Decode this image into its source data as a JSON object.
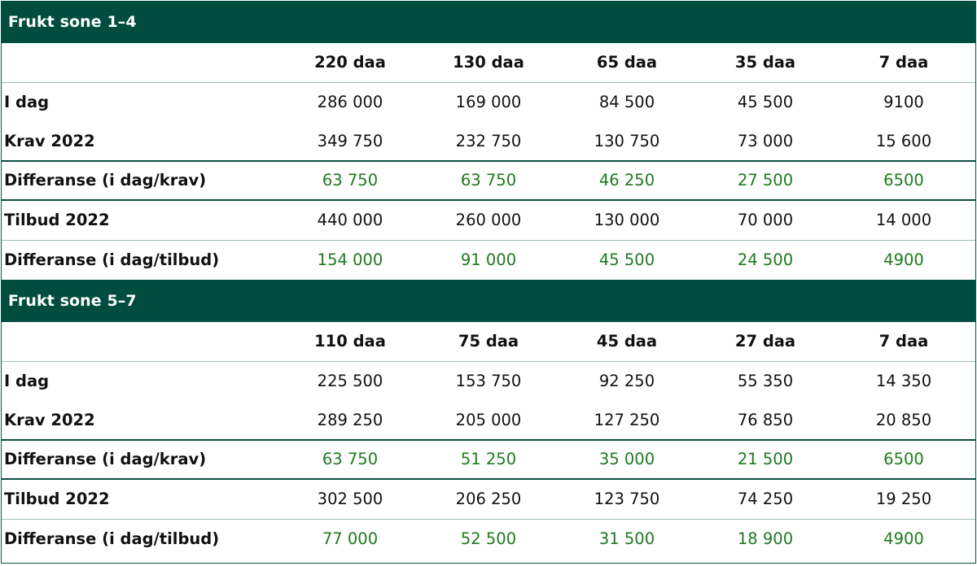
{
  "sections": [
    {
      "title": "Frukt sone 1–4",
      "columns": [
        "220 daa",
        "130 daa",
        "65 daa",
        "35 daa",
        "7 daa"
      ],
      "rows": [
        {
          "label": "I dag",
          "values": [
            "286 000",
            "169 000",
            "84 500",
            "45 500",
            "9100"
          ]
        },
        {
          "label": "Krav 2022",
          "values": [
            "349 750",
            "232 750",
            "130 750",
            "73 000",
            "15 600"
          ]
        },
        {
          "label": "Differanse (i dag/krav)",
          "values": [
            "63 750",
            "63 750",
            "46 250",
            "27 500",
            "6500"
          ]
        },
        {
          "label": "Tilbud 2022",
          "values": [
            "440 000",
            "260 000",
            "130 000",
            "70 000",
            "14 000"
          ]
        },
        {
          "label": "Differanse (i dag/tilbud)",
          "values": [
            "154 000",
            "91 000",
            "45 500",
            "24 500",
            "4900"
          ]
        }
      ]
    },
    {
      "title": "Frukt sone 5–7",
      "columns": [
        "110 daa",
        "75 daa",
        "45 daa",
        "27 daa",
        "7 daa"
      ],
      "rows": [
        {
          "label": "I dag",
          "values": [
            "225 500",
            "153 750",
            "92 250",
            "55 350",
            "14 350"
          ]
        },
        {
          "label": "Krav 2022",
          "values": [
            "289 250",
            "205 000",
            "127 250",
            "76 850",
            "20 850"
          ]
        },
        {
          "label": "Differanse (i dag/krav)",
          "values": [
            "63 750",
            "51 250",
            "35 000",
            "21 500",
            "6500"
          ]
        },
        {
          "label": "Tilbud 2022",
          "values": [
            "302 500",
            "206 250",
            "123 750",
            "74 250",
            "19 250"
          ]
        },
        {
          "label": "Differanse (i dag/tilbud)",
          "values": [
            "77 000",
            "52 500",
            "31 500",
            "18 900",
            "4900"
          ]
        }
      ]
    }
  ],
  "colors": {
    "band": "#004d3f",
    "diff_text": "#1d7a1d",
    "text": "#111111"
  }
}
